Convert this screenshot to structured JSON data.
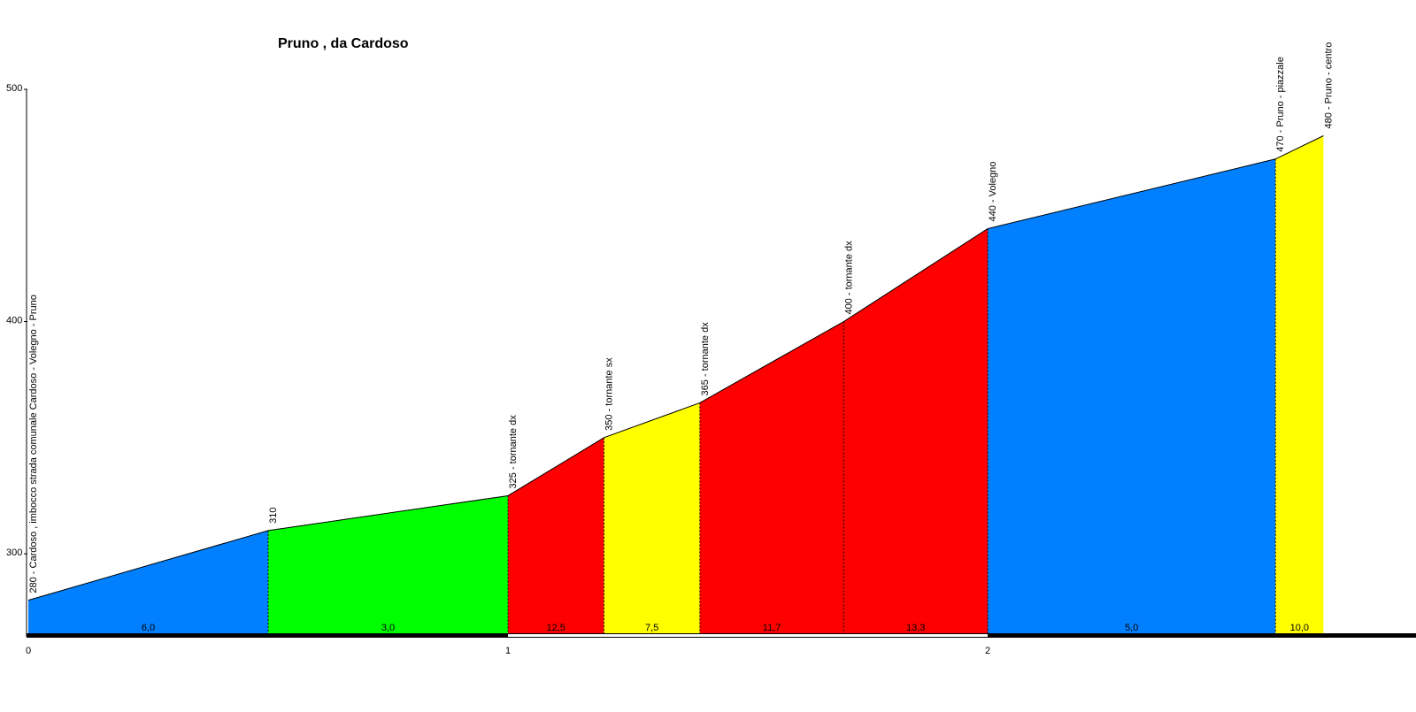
{
  "chart_data": {
    "type": "area",
    "title": "Pruno , da Cardoso",
    "xlabel": "",
    "ylabel": "",
    "xlim": [
      0,
      2.9
    ],
    "ylim": [
      265,
      500
    ],
    "y_ticks": [
      "300",
      "400",
      "500"
    ],
    "x_ticks": [
      "0",
      "1",
      "2"
    ],
    "points": [
      {
        "x": 0.0,
        "y": 280,
        "label": "280 - Cardoso , imbocco strada comunale Cardoso - Volegno - Pruno"
      },
      {
        "x": 0.5,
        "y": 310,
        "label": "310"
      },
      {
        "x": 1.0,
        "y": 325,
        "label": "325 - tornante dx"
      },
      {
        "x": 1.2,
        "y": 350,
        "label": "350 - tornante sx"
      },
      {
        "x": 1.4,
        "y": 365,
        "label": "365 - tornante dx"
      },
      {
        "x": 1.7,
        "y": 400,
        "label": "400 - tornante dx"
      },
      {
        "x": 2.0,
        "y": 440,
        "label": "440 - Volegno"
      },
      {
        "x": 2.6,
        "y": 470,
        "label": "470 - Pruno - piazzale"
      },
      {
        "x": 2.7,
        "y": 480,
        "label": "480 - Pruno - centro"
      }
    ],
    "segments": [
      {
        "gradient": "6,0",
        "color": "#0080ff"
      },
      {
        "gradient": "3,0",
        "color": "#00ff00"
      },
      {
        "gradient": "12,5",
        "color": "#ff0000"
      },
      {
        "gradient": "7,5",
        "color": "#ffff00"
      },
      {
        "gradient": "11,7",
        "color": "#ff0000"
      },
      {
        "gradient": "13,3",
        "color": "#ff0000"
      },
      {
        "gradient": "5,0",
        "color": "#0080ff"
      },
      {
        "gradient": "10,0",
        "color": "#ffff00"
      }
    ],
    "grid": false,
    "legend": "none"
  }
}
